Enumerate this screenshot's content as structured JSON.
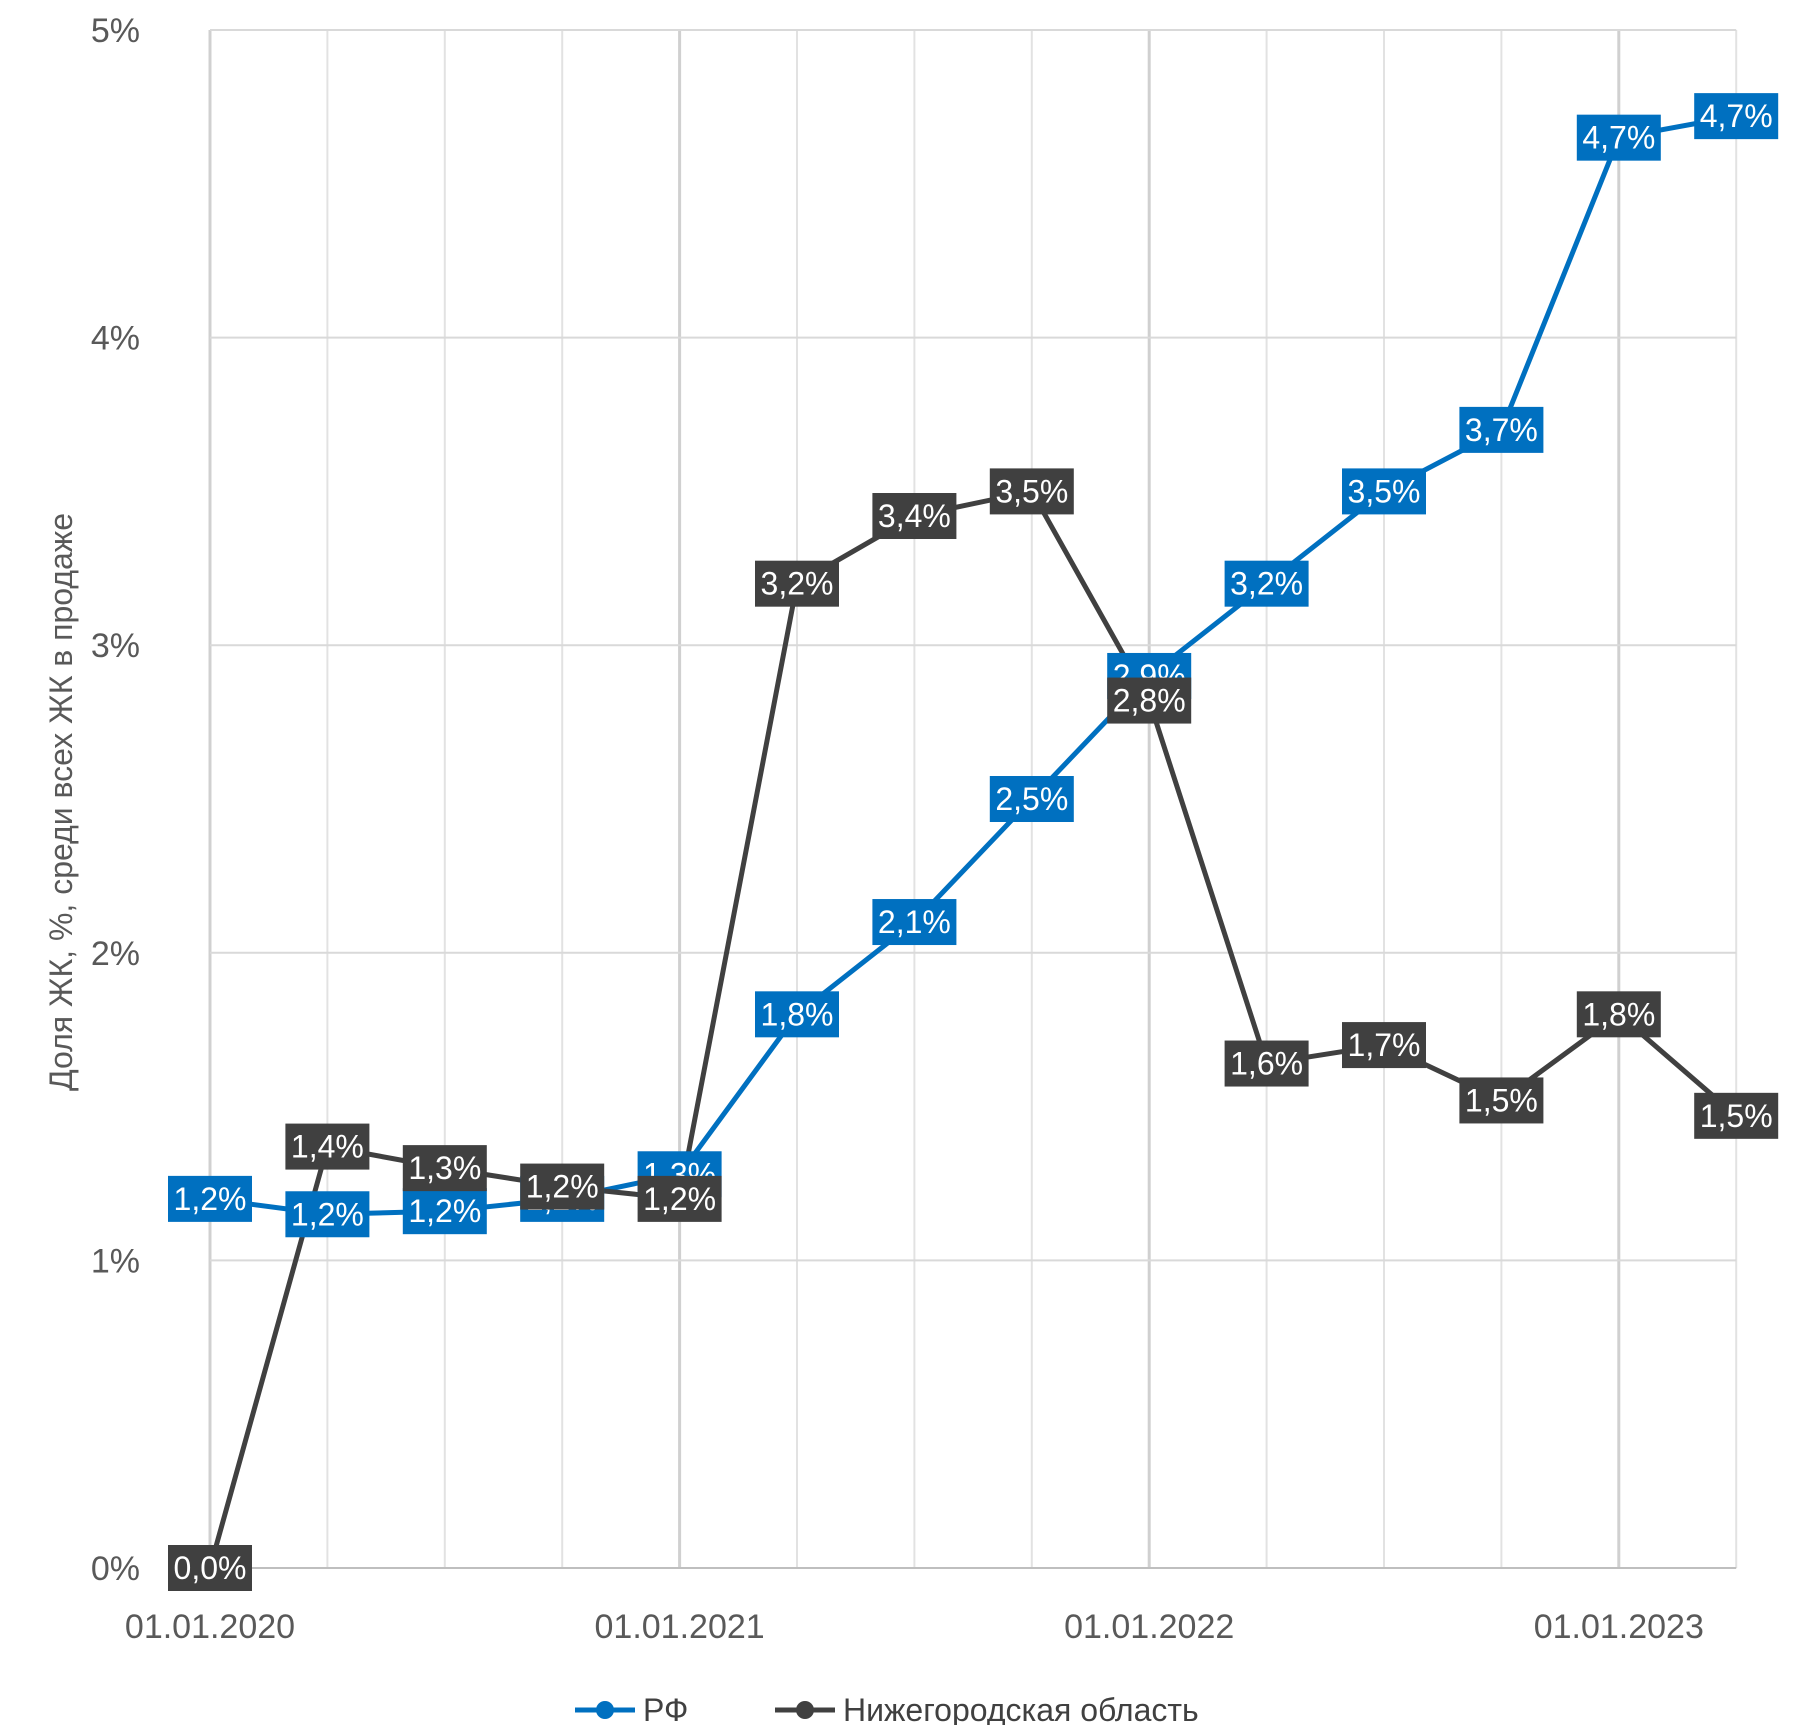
{
  "chart_data": {
    "type": "line",
    "ylabel": "Доля ЖК, %, среди всех ЖК в продаже",
    "xlabel": "",
    "ylim": [
      0,
      5
    ],
    "yticks": [
      "0%",
      "1%",
      "2%",
      "3%",
      "4%",
      "5%"
    ],
    "xtick_labels": [
      "01.01.2020",
      "01.01.2021",
      "01.01.2022",
      "01.01.2023"
    ],
    "x": [
      "01.01.2020",
      "01.04.2020",
      "01.07.2020",
      "01.10.2020",
      "01.01.2021",
      "01.04.2021",
      "01.07.2021",
      "01.10.2021",
      "01.01.2022",
      "01.04.2022",
      "01.07.2022",
      "01.10.2022",
      "01.01.2023",
      "01.04.2023"
    ],
    "grid": true,
    "legend_position": "bottom",
    "series": [
      {
        "name": "РФ",
        "color": "#0070C0",
        "values": [
          1.2,
          1.15,
          1.16,
          1.2,
          1.28,
          1.8,
          2.1,
          2.5,
          2.9,
          3.2,
          3.5,
          3.7,
          4.65,
          4.72
        ],
        "labels": [
          "1,2%",
          "1,2%",
          "1,2%",
          "1,2%",
          "1,3%",
          "1,8%",
          "2,1%",
          "2,5%",
          "2,9%",
          "3,2%",
          "3,5%",
          "3,7%",
          "4,7%",
          "4,7%"
        ]
      },
      {
        "name": "Нижегородская область",
        "color": "#404040",
        "values": [
          0.0,
          1.37,
          1.3,
          1.24,
          1.2,
          3.2,
          3.42,
          3.5,
          2.82,
          1.64,
          1.7,
          1.52,
          1.8,
          1.47
        ],
        "labels": [
          "0,0%",
          "1,4%",
          "1,3%",
          "1,2%",
          "1,2%",
          "3,2%",
          "3,4%",
          "3,5%",
          "2,8%",
          "1,6%",
          "1,7%",
          "1,5%",
          "1,8%",
          "1,5%"
        ]
      }
    ]
  }
}
